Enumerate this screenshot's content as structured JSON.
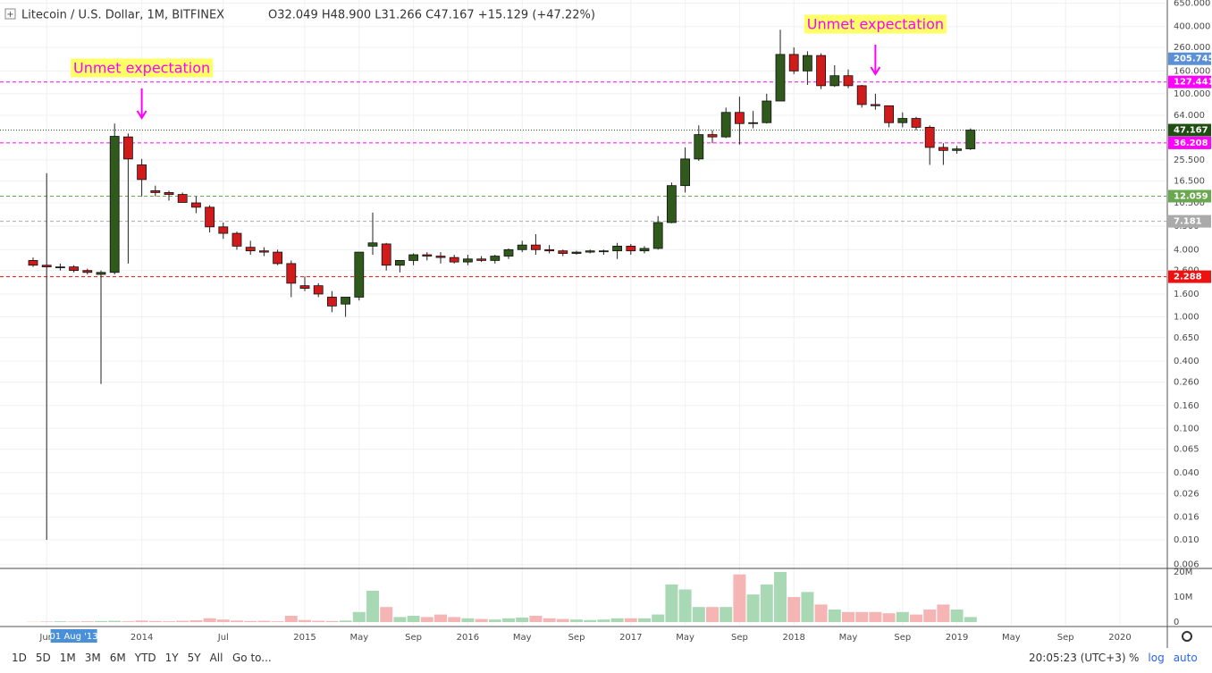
{
  "chart_data": {
    "type": "candlestick",
    "title": "Litecoin / U.S. Dollar, 1M, BITFINEX",
    "legend": "O32.049 H48.900 L31.266 C47.167 +15.129 (+47.22%)",
    "log_scale": true,
    "grid": true,
    "up_color": "#2f5a1c",
    "down_color": "#d11a1a",
    "x": [
      "2013-05",
      "2013-06",
      "2013-07",
      "2013-08",
      "2013-09",
      "2013-10",
      "2013-11",
      "2013-12",
      "2014-01",
      "2014-02",
      "2014-03",
      "2014-04",
      "2014-05",
      "2014-06",
      "2014-07",
      "2014-08",
      "2014-09",
      "2014-10",
      "2014-11",
      "2014-12",
      "2015-01",
      "2015-02",
      "2015-03",
      "2015-04",
      "2015-05",
      "2015-06",
      "2015-07",
      "2015-08",
      "2015-09",
      "2015-10",
      "2015-11",
      "2015-12",
      "2016-01",
      "2016-02",
      "2016-03",
      "2016-04",
      "2016-05",
      "2016-06",
      "2016-07",
      "2016-08",
      "2016-09",
      "2016-10",
      "2016-11",
      "2016-12",
      "2017-01",
      "2017-02",
      "2017-03",
      "2017-04",
      "2017-05",
      "2017-06",
      "2017-07",
      "2017-08",
      "2017-09",
      "2017-10",
      "2017-11",
      "2017-12",
      "2018-01",
      "2018-02",
      "2018-03",
      "2018-04",
      "2018-05",
      "2018-06",
      "2018-07",
      "2018-08",
      "2018-09",
      "2018-10",
      "2018-11",
      "2018-12",
      "2019-01",
      "2019-02"
    ],
    "open": [
      3.2,
      2.9,
      2.8,
      2.8,
      2.6,
      2.4,
      2.5,
      41,
      23,
      13.5,
      13,
      12.5,
      10.5,
      9.6,
      6.4,
      5.6,
      4.2,
      3.9,
      3.8,
      3.0,
      1.9,
      1.9,
      1.5,
      1.3,
      1.5,
      4.3,
      4.5,
      2.9,
      3.2,
      3.6,
      3.5,
      3.4,
      3.1,
      3.3,
      3.2,
      3.5,
      4.0,
      4.4,
      4.0,
      3.9,
      3.7,
      3.8,
      3.9,
      3.9,
      4.3,
      3.9,
      4.1,
      7,
      15,
      26,
      43,
      41,
      68,
      54,
      55,
      86,
      225,
      160,
      220,
      118,
      145,
      118,
      80,
      78,
      55,
      60,
      50,
      33,
      31,
      32.049
    ],
    "high": [
      3.4,
      19.4,
      3.0,
      2.9,
      2.7,
      2.6,
      54,
      44,
      26,
      15,
      13.5,
      13,
      12,
      10,
      7,
      5.8,
      4.8,
      4.2,
      4.0,
      3.2,
      2.3,
      2.0,
      1.7,
      1.4,
      3.8,
      8.6,
      4.6,
      3.2,
      3.7,
      3.8,
      3.8,
      3.6,
      3.6,
      3.5,
      3.6,
      4.1,
      4.8,
      5.5,
      4.4,
      4.0,
      3.9,
      4.0,
      4.0,
      4.6,
      4.5,
      4.3,
      8,
      16,
      33,
      52,
      47,
      75,
      94,
      70,
      100,
      375,
      260,
      240,
      230,
      180,
      165,
      120,
      100,
      78,
      68,
      62,
      52,
      36,
      34,
      48.9
    ],
    "low": [
      2.8,
      0.01,
      2.6,
      2.5,
      2.4,
      0.25,
      2.4,
      3.0,
      12,
      12,
      11,
      11,
      8.5,
      5.7,
      5,
      4.0,
      3.6,
      3.5,
      2.9,
      1.5,
      1.7,
      1.5,
      1.1,
      1.0,
      1.4,
      3.6,
      2.6,
      2.5,
      2.9,
      3.2,
      3.0,
      3.0,
      2.9,
      3.1,
      3.0,
      3.3,
      3.8,
      3.6,
      3.7,
      3.5,
      3.6,
      3.7,
      3.6,
      3.3,
      3.6,
      3.7,
      4.0,
      6.9,
      13,
      25,
      36,
      40,
      35,
      49,
      54,
      86,
      150,
      120,
      110,
      115,
      112,
      75,
      72,
      50,
      50,
      47,
      23,
      23,
      29,
      31.266
    ],
    "close": [
      2.9,
      2.8,
      2.8,
      2.6,
      2.5,
      2.5,
      41.5,
      26,
      17,
      13,
      12.5,
      10.6,
      9.6,
      6.4,
      5.6,
      4.3,
      3.9,
      3.8,
      3.0,
      2.0,
      1.8,
      1.6,
      1.25,
      1.5,
      3.8,
      4.6,
      2.9,
      3.2,
      3.6,
      3.5,
      3.4,
      3.1,
      3.3,
      3.2,
      3.5,
      4.0,
      4.4,
      4.0,
      3.9,
      3.7,
      3.8,
      3.9,
      3.9,
      4.3,
      3.9,
      4.1,
      7.0,
      15,
      26,
      43,
      41,
      68,
      54,
      55,
      86,
      225,
      160,
      220,
      118,
      145,
      118,
      80,
      78,
      55,
      60,
      50,
      33,
      31,
      32,
      47.167
    ],
    "ylim": [
      0.00565,
      692
    ],
    "yticks": [
      {
        "value": 650,
        "label": "650.000"
      },
      {
        "value": 400,
        "label": "400.000"
      },
      {
        "value": 260,
        "label": "260.000"
      },
      {
        "value": 160,
        "label": "160.000"
      },
      {
        "value": 100,
        "label": "100.000"
      },
      {
        "value": 64,
        "label": "64.000"
      },
      {
        "value": 25.5,
        "label": "25.500"
      },
      {
        "value": 16.5,
        "label": "16.500"
      },
      {
        "value": 10.5,
        "label": "10.500"
      },
      {
        "value": 6.5,
        "label": "6.500"
      },
      {
        "value": 4,
        "label": "4.000"
      },
      {
        "value": 2.6,
        "label": "2.600"
      },
      {
        "value": 1.6,
        "label": "1.600"
      },
      {
        "value": 1,
        "label": "1.000"
      },
      {
        "value": 0.65,
        "label": "0.650"
      },
      {
        "value": 0.4,
        "label": "0.400"
      },
      {
        "value": 0.26,
        "label": "0.260"
      },
      {
        "value": 0.16,
        "label": "0.160"
      },
      {
        "value": 0.1,
        "label": "0.100"
      },
      {
        "value": 0.065,
        "label": "0.065"
      },
      {
        "value": 0.04,
        "label": "0.040"
      },
      {
        "value": 0.026,
        "label": "0.026"
      },
      {
        "value": 0.016,
        "label": "0.016"
      },
      {
        "value": 0.01,
        "label": "0.010"
      },
      {
        "value": 0.006,
        "label": "0.006"
      }
    ],
    "xticks": [
      {
        "value": "2013-06",
        "label": "Jun"
      },
      {
        "value": "2014-01",
        "label": "2014"
      },
      {
        "value": "2014-07",
        "label": "Jul"
      },
      {
        "value": "2015-01",
        "label": "2015"
      },
      {
        "value": "2015-05",
        "label": "May"
      },
      {
        "value": "2015-09",
        "label": "Sep"
      },
      {
        "value": "2016-01",
        "label": "2016"
      },
      {
        "value": "2016-05",
        "label": "May"
      },
      {
        "value": "2016-09",
        "label": "Sep"
      },
      {
        "value": "2017-01",
        "label": "2017"
      },
      {
        "value": "2017-05",
        "label": "May"
      },
      {
        "value": "2017-09",
        "label": "Sep"
      },
      {
        "value": "2018-01",
        "label": "2018"
      },
      {
        "value": "2018-05",
        "label": "May"
      },
      {
        "value": "2018-09",
        "label": "Sep"
      },
      {
        "value": "2019-01",
        "label": "2019"
      },
      {
        "value": "2019-05",
        "label": "May"
      },
      {
        "value": "2019-09",
        "label": "Sep"
      },
      {
        "value": "2020-01",
        "label": "2020"
      }
    ],
    "crosshair": {
      "value": "2013-08",
      "label": "01 Aug '13"
    },
    "levels": [
      {
        "value": 205.745,
        "color": "#5b8fd6",
        "style": "none"
      },
      {
        "value": 127.441,
        "color": "#ff00ff",
        "style": "dashed"
      },
      {
        "value": 47.167,
        "color": "#1f4d12",
        "style": "dotted"
      },
      {
        "value": 36.208,
        "color": "#ff00ff",
        "style": "dashed"
      },
      {
        "value": 12.059,
        "color": "#6aa84f",
        "style": "dashed"
      },
      {
        "value": 7.181,
        "color": "#aaaaaa",
        "style": "dashed"
      },
      {
        "value": 2.288,
        "color": "#ee1111",
        "style": "dashed"
      }
    ],
    "annotations": [
      {
        "text": "Unmet expectation",
        "x": "2014-01"
      },
      {
        "text": "Unmet expectation",
        "x": "2018-07"
      }
    ],
    "volume": {
      "values": [
        100000,
        200000,
        300000,
        200000,
        300000,
        400000,
        500000,
        300000,
        600000,
        400000,
        300000,
        500000,
        700000,
        1500000,
        1000000,
        600000,
        400000,
        500000,
        300000,
        2500000,
        800000,
        500000,
        400000,
        600000,
        4000000,
        12500000,
        6000000,
        2000000,
        2500000,
        2000000,
        3000000,
        2000000,
        1500000,
        1200000,
        1000000,
        1500000,
        1800000,
        2500000,
        1500000,
        1200000,
        1000000,
        800000,
        1000000,
        1500000,
        1500000,
        1500000,
        3000000,
        15000000,
        13000000,
        6000000,
        6000000,
        6000000,
        19000000,
        11000000,
        15000000,
        20000000,
        10000000,
        12000000,
        7000000,
        5000000,
        4000000,
        4000000,
        4000000,
        3500000,
        4000000,
        3000000,
        5000000,
        7000000,
        5000000,
        2000000
      ],
      "up_color": "#a9d8b5",
      "down_color": "#f6b5b5",
      "ylim": [
        -1430000,
        21400000
      ],
      "yticks": [
        0,
        {
          "value": 10000000,
          "label": "10M"
        },
        {
          "value": 20000000,
          "label": "20M"
        }
      ]
    }
  },
  "toolbar": {
    "ranges": [
      "1D",
      "5D",
      "1M",
      "3M",
      "6M",
      "YTD",
      "1Y",
      "5Y",
      "All"
    ],
    "goto": "Go to...",
    "clock": "20:05:23 (UTC+3)",
    "percent": "%",
    "log": "log",
    "auto": "auto"
  }
}
